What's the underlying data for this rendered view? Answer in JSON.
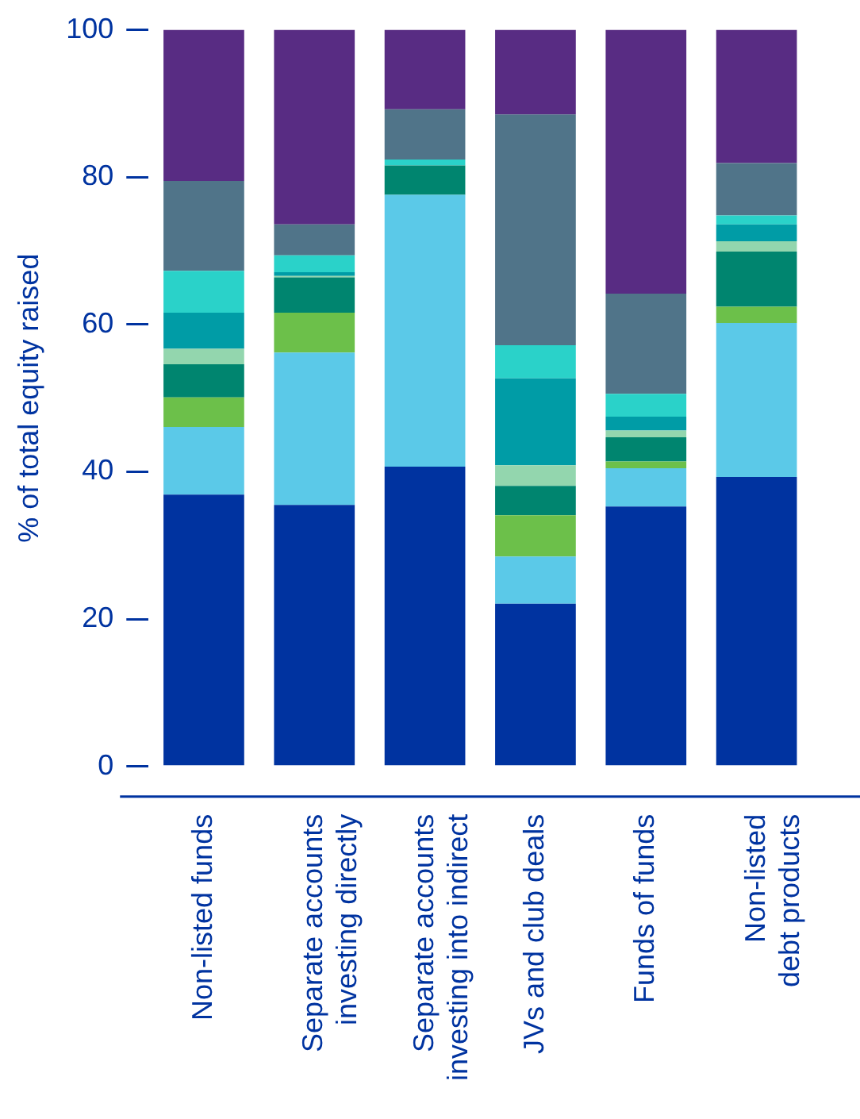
{
  "chart_data": {
    "type": "bar",
    "stacked": true,
    "ylabel": "% of total equity raised",
    "categories": [
      "Non-listed funds",
      "Separate accounts\ninvesting directly",
      "Separate accounts\ninvesting into indirect",
      "JVs and club deals",
      "Funds of funds",
      "Non-listed\ndebt products"
    ],
    "series": [
      {
        "color": "#0033a0",
        "values": [
          36.9,
          35.5,
          40.7,
          22.1,
          35.3,
          39.3
        ]
      },
      {
        "color": "#5bc9e8",
        "values": [
          9.2,
          20.7,
          36.9,
          6.4,
          5.2,
          20.9
        ]
      },
      {
        "color": "#6cc04a",
        "values": [
          4.0,
          5.4,
          0,
          5.6,
          0.9,
          2.2
        ]
      },
      {
        "color": "#00856f",
        "values": [
          4.5,
          4.8,
          4.0,
          4.0,
          3.3,
          7.5
        ]
      },
      {
        "color": "#93d6ae",
        "values": [
          2.1,
          0.2,
          0,
          2.8,
          0.9,
          1.4
        ]
      },
      {
        "color": "#009ca6",
        "values": [
          4.9,
          0.5,
          0,
          11.8,
          1.9,
          2.3
        ]
      },
      {
        "color": "#2ad2c9",
        "values": [
          5.7,
          2.3,
          0.8,
          4.5,
          3.1,
          1.2
        ]
      },
      {
        "color": "#507489",
        "values": [
          12.2,
          4.2,
          6.8,
          31.3,
          13.6,
          7.1
        ]
      },
      {
        "color": "#582c83",
        "values": [
          20.5,
          26.4,
          10.8,
          11.5,
          35.8,
          18.1
        ]
      }
    ],
    "ylim": [
      0,
      100
    ],
    "yticks": [
      0,
      20,
      40,
      60,
      80,
      100
    ],
    "grid": false,
    "legend": false
  }
}
